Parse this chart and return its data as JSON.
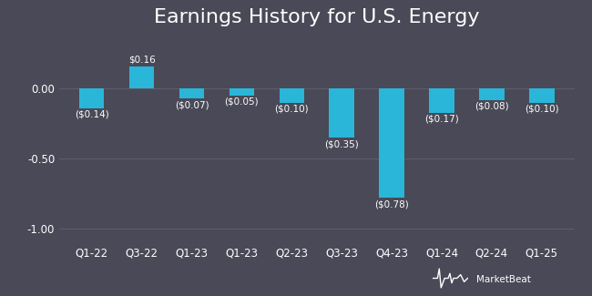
{
  "title": "Earnings History for U.S. Energy",
  "categories": [
    "Q1-22",
    "Q3-22",
    "Q1-23",
    "Q1-23",
    "Q2-23",
    "Q3-23",
    "Q4-23",
    "Q1-24",
    "Q2-24",
    "Q1-25"
  ],
  "values": [
    -0.14,
    0.16,
    -0.07,
    -0.05,
    -0.1,
    -0.35,
    -0.78,
    -0.17,
    -0.08,
    -0.1
  ],
  "labels": [
    "($0.14)",
    "$0.16",
    "($0.07)",
    "($0.05)",
    "($0.10)",
    "($0.35)",
    "($0.78)",
    "($0.17)",
    "($0.08)",
    "($0.10)"
  ],
  "bar_color": "#29b6d8",
  "background_color": "#494957",
  "text_color": "#ffffff",
  "grid_color": "#5c5c6b",
  "ylim": [
    -1.1,
    0.38
  ],
  "yticks": [
    0.0,
    -0.5,
    -1.0
  ],
  "title_fontsize": 16,
  "label_fontsize": 7.5,
  "tick_fontsize": 8.5,
  "watermark": "MarketBeat"
}
